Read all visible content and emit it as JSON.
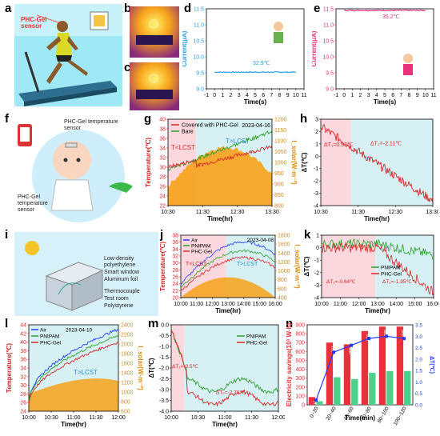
{
  "panel_letters": [
    "a",
    "b",
    "c",
    "d",
    "e",
    "f",
    "g",
    "h",
    "i",
    "j",
    "k",
    "l",
    "m",
    "n"
  ],
  "illustrations": {
    "a_sensor_label": "PHC-Gel sensor",
    "f_labels": [
      "PHC-Gel temperature sensor",
      "PHC-Gel temperature sensor"
    ],
    "i_labels": [
      "Low-density polyethylene",
      "Smart window",
      "Aluminum foil",
      "Thermocouple",
      "Test room",
      "Polystyrene"
    ]
  },
  "chart_data": [
    {
      "id": "d",
      "type": "line",
      "xlabel": "Time(s)",
      "ylabel": "Current(μA)",
      "xlim": [
        -1,
        11
      ],
      "ylim": [
        9.0,
        11.5
      ],
      "xticks": [
        "-1",
        "0",
        "1",
        "2",
        "3",
        "4",
        "5",
        "6",
        "7",
        "8",
        "9",
        "10",
        "11"
      ],
      "yticks": [
        "9.0",
        "9.5",
        "10.0",
        "10.5",
        "11.0",
        "11.5"
      ],
      "annotation": "32.9℃",
      "color": "#2a9ee6",
      "series": [
        {
          "x": [
            0,
            10
          ],
          "y": [
            9.52,
            9.52
          ]
        }
      ]
    },
    {
      "id": "e",
      "type": "line",
      "xlabel": "Time(s)",
      "ylabel": "Current(μA)",
      "xlim": [
        -1,
        11
      ],
      "ylim": [
        9.0,
        11.5
      ],
      "xticks": [
        "-1",
        "0",
        "1",
        "2",
        "3",
        "4",
        "5",
        "6",
        "7",
        "8",
        "9",
        "10",
        "11"
      ],
      "yticks": [
        "9.0",
        "9.5",
        "10.0",
        "10.5",
        "11.0",
        "11.5"
      ],
      "annotation": "35.2℃",
      "color": "#e8327c",
      "series": [
        {
          "x": [
            0,
            10
          ],
          "y": [
            11.45,
            11.45
          ]
        }
      ]
    },
    {
      "id": "g",
      "type": "line",
      "xlabel": "Time(hr)",
      "ylabel": "Temperature(℃)",
      "y2label": "I_solar(W·m⁻²)",
      "xticks": [
        "10:30",
        "11:30",
        "12:30",
        "13:30"
      ],
      "yticks": [
        "22",
        "24",
        "26",
        "28",
        "30",
        "32",
        "34",
        "36",
        "38",
        "40"
      ],
      "y2ticks": [
        "800",
        "850",
        "900",
        "950",
        "1000",
        "1050",
        "1100",
        "1150",
        "1200"
      ],
      "date": "2023-04-16",
      "regions": [
        "T<LCST",
        "T>LCST"
      ],
      "series": [
        {
          "name": "Covered with PHC-Gel",
          "color": "#d62728"
        },
        {
          "name": "Bare",
          "color": "#2ca02c"
        }
      ]
    },
    {
      "id": "h",
      "type": "line",
      "xlabel": "Time(hr)",
      "ylabel": "ΔT(℃)",
      "xticks": [
        "10:30",
        "11:30",
        "12:30",
        "13:30"
      ],
      "yticks": [
        "-4",
        "-3",
        "-2",
        "-1",
        "0",
        "1",
        "2",
        "3"
      ],
      "annotations": [
        "ΔT₁=0.98℃",
        "ΔT₂=-2.11℃"
      ]
    },
    {
      "id": "j",
      "type": "line",
      "xlabel": "Time(hr)",
      "ylabel": "Temperature(℃)",
      "y2label": "I_solar(W·m⁻²)",
      "xticks": [
        "10:00",
        "11:00",
        "12:00",
        "13:00",
        "14:00",
        "15:00",
        "16:00"
      ],
      "yticks": [
        "20",
        "22",
        "24",
        "26",
        "28",
        "30",
        "32",
        "34",
        "36",
        "38"
      ],
      "y2ticks": [
        "400",
        "600",
        "800",
        "1000",
        "1200",
        "1400",
        "1600",
        "1800"
      ],
      "date": "2023-04-08",
      "regions": [
        "T<LCST",
        "T>LCST"
      ],
      "series": [
        {
          "name": "Air",
          "color": "#1f3cff"
        },
        {
          "name": "PNIPAM",
          "color": "#2ca02c"
        },
        {
          "name": "PHC-Gel",
          "color": "#d62728"
        }
      ]
    },
    {
      "id": "k",
      "type": "line",
      "xlabel": "Time(hr)",
      "ylabel": "ΔT(℃)",
      "xticks": [
        "10:00",
        "11:00",
        "12:00",
        "13:00",
        "14:00",
        "15:00",
        "16:00"
      ],
      "yticks": [
        "-4",
        "-3",
        "-2",
        "-1",
        "0",
        "1"
      ],
      "annotations": [
        "ΔT₁=-0.64℃",
        "ΔT₂=-1.95℃"
      ],
      "series": [
        {
          "name": "PNIPAM",
          "color": "#2ca02c"
        },
        {
          "name": "PHC-Gel",
          "color": "#d62728"
        }
      ]
    },
    {
      "id": "l",
      "type": "line",
      "xlabel": "Time(hr)",
      "ylabel": "Temperature(℃)",
      "y2label": "I_solar(W·m⁻²)",
      "xticks": [
        "10:00",
        "10:30",
        "11:00",
        "11:30",
        "12:00"
      ],
      "yticks": [
        "24",
        "26",
        "28",
        "30",
        "32",
        "34",
        "36",
        "38",
        "40",
        "42",
        "44"
      ],
      "y2ticks": [
        "600",
        "800",
        "1000",
        "1200",
        "1400",
        "1600",
        "1800",
        "2000",
        "2200",
        "2400"
      ],
      "date": "2023-04-10",
      "regions": [
        "T>LCST"
      ],
      "series": [
        {
          "name": "Air",
          "color": "#1f3cff"
        },
        {
          "name": "PNIPAM",
          "color": "#2ca02c"
        },
        {
          "name": "PHC-Gel",
          "color": "#d62728"
        }
      ]
    },
    {
      "id": "m",
      "type": "line",
      "xlabel": "Time(hr)",
      "ylabel": "ΔT(℃)",
      "xticks": [
        "10:00",
        "10:30",
        "11:00",
        "11:30",
        "12:00"
      ],
      "yticks": [
        "-4.0",
        "-3.5",
        "-3.0",
        "-2.5",
        "-2.0",
        "-1.5",
        "-1.0",
        "-0.5",
        "0.0"
      ],
      "annotations": [
        "ΔT₁=-0.5℃",
        "ΔT₂=-2.76℃"
      ],
      "series": [
        {
          "name": "PNIPAM",
          "color": "#2ca02c"
        },
        {
          "name": "PHC-Gel",
          "color": "#d62728"
        }
      ]
    },
    {
      "id": "n",
      "type": "bar",
      "xlabel": "Time(min)",
      "ylabel": "Electricity savings(10³ W·h)",
      "y2label": "Expenditure savings(10³ yuan)",
      "y3label": "ΔT(℃)",
      "categories": [
        "0~20",
        "20~40",
        "40~60",
        "60~80",
        "80~100",
        "100~120"
      ],
      "yticks": [
        "0",
        "100",
        "200",
        "300",
        "400",
        "500",
        "600",
        "700",
        "800",
        "900"
      ],
      "y2ticks": [
        "0.0",
        "0.5",
        "1.0",
        "1.5",
        "2.0",
        "2.5",
        "3.0",
        "3.5"
      ],
      "series": [
        {
          "name": "Electricity savings",
          "color": "#e8313a",
          "values": [
            87,
            700,
            680,
            830,
            880,
            880
          ]
        },
        {
          "name": "Expenditure savings",
          "color": "#4cd08a",
          "values": [
            40,
            310,
            290,
            360,
            380,
            380
          ]
        },
        {
          "name": "ΔT",
          "color": "#1f3cff",
          "values": [
            0.2,
            2.3,
            2.6,
            2.9,
            3.0,
            2.9
          ]
        }
      ],
      "bar_labels": [
        "87.09",
        "700",
        "680",
        "830",
        "880",
        "880"
      ]
    }
  ]
}
